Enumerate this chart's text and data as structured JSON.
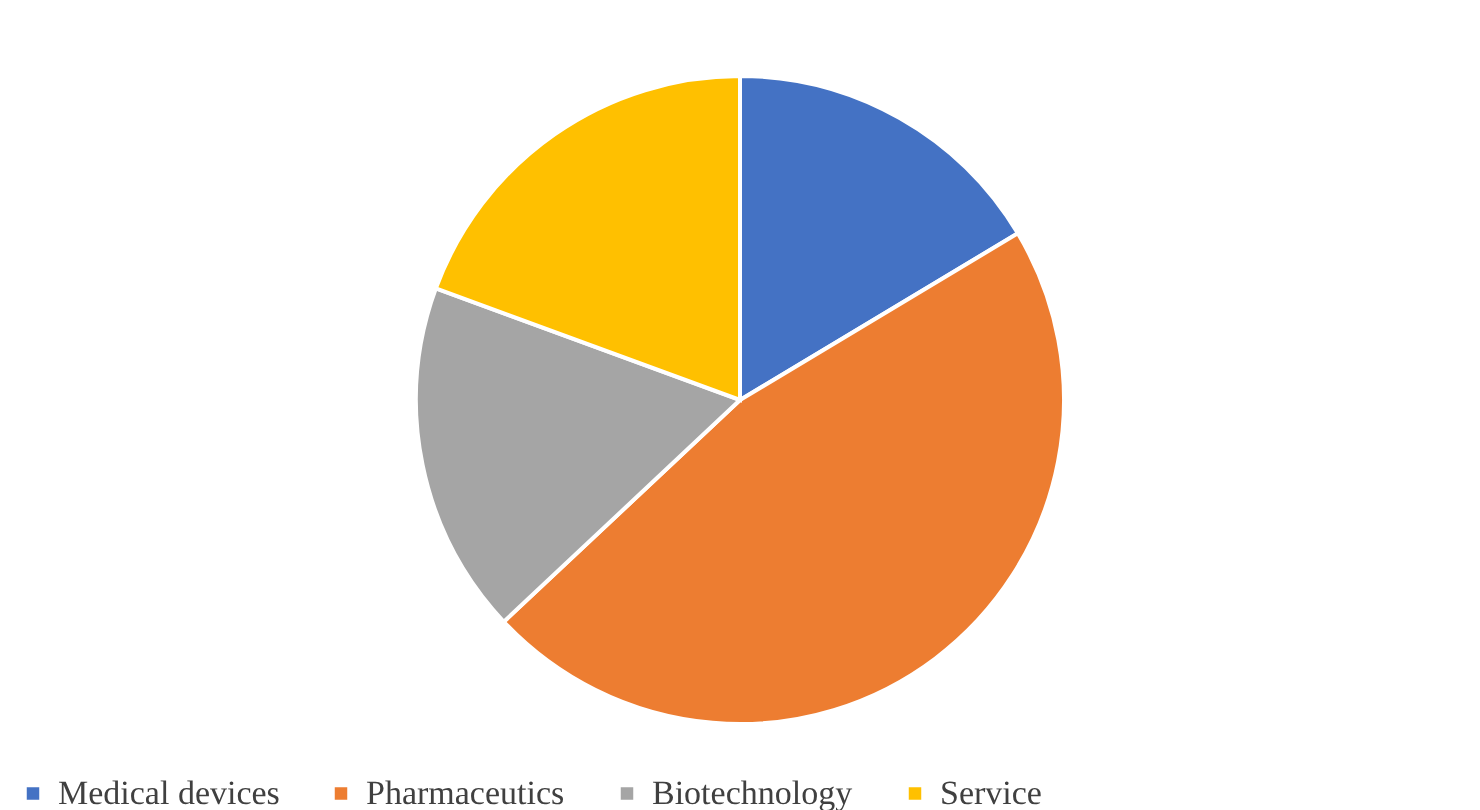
{
  "chart_data": {
    "type": "pie",
    "categories": [
      "Medical devices",
      "Pharmaceutics",
      "Biotechnology",
      "Service"
    ],
    "values": [
      16.4,
      46.6,
      17.6,
      19.4
    ],
    "colors": [
      "#4472c4",
      "#ed7d31",
      "#a5a5a5",
      "#ffc000"
    ],
    "legend": "bottom"
  }
}
